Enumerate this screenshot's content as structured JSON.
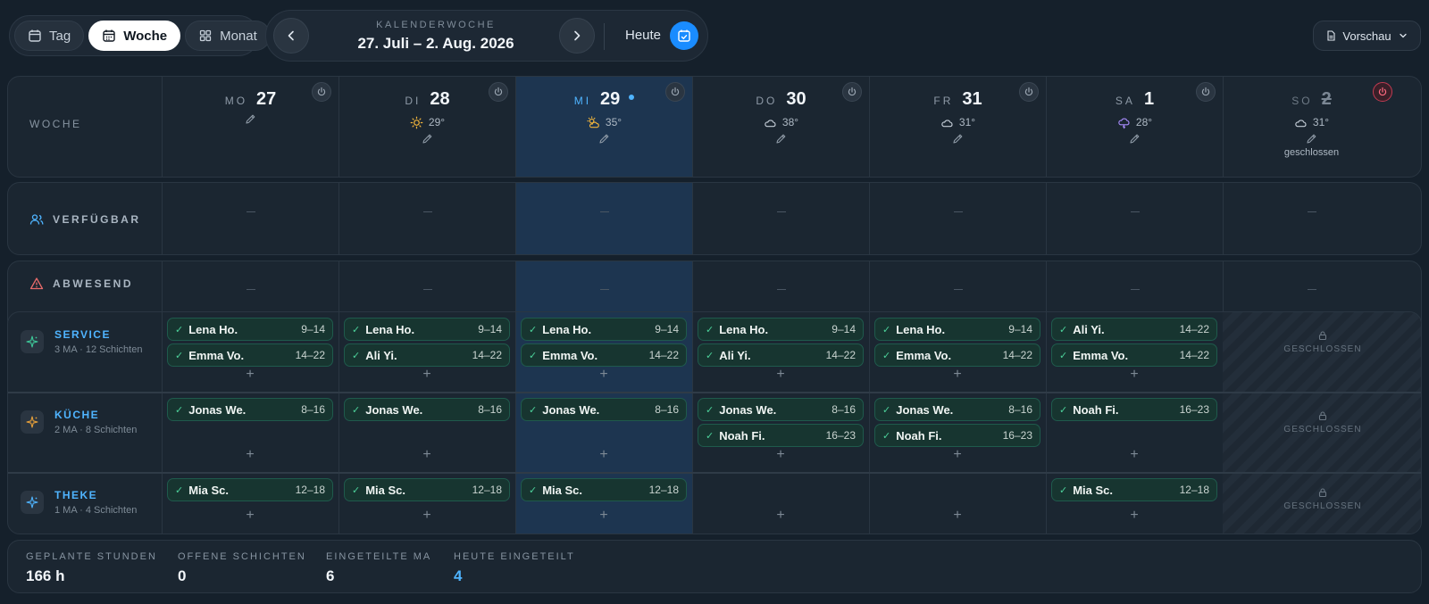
{
  "views": [
    {
      "label": "Tag",
      "icon": "calendar-icon",
      "active": false
    },
    {
      "label": "Woche",
      "icon": "calendar-week-icon",
      "active": true
    },
    {
      "label": "Monat",
      "icon": "grid-icon",
      "active": false
    }
  ],
  "week_nav": {
    "label": "KALENDERWOCHE",
    "range": "27. Juli – 2. Aug. 2026",
    "today_label": "Heute"
  },
  "preview_label": "Vorschau",
  "week_label": "WOCHE",
  "days": [
    {
      "dow": "MO",
      "num": "27",
      "weather": "",
      "weather_icon": "",
      "today": false,
      "closed": false
    },
    {
      "dow": "DI",
      "num": "28",
      "weather": "29°",
      "weather_icon": "sun-icon",
      "today": false,
      "closed": false
    },
    {
      "dow": "MI",
      "num": "29",
      "weather": "35°",
      "weather_icon": "sun-cloud-icon",
      "today": true,
      "closed": false
    },
    {
      "dow": "DO",
      "num": "30",
      "weather": "38°",
      "weather_icon": "cloud-icon",
      "today": false,
      "closed": false
    },
    {
      "dow": "FR",
      "num": "31",
      "weather": "31°",
      "weather_icon": "cloud-icon",
      "today": false,
      "closed": false
    },
    {
      "dow": "SA",
      "num": "1",
      "weather": "28°",
      "weather_icon": "storm-cloud-icon",
      "today": false,
      "closed": false
    },
    {
      "dow": "SO",
      "num": "2",
      "weather": "31°",
      "weather_icon": "cloud-icon",
      "today": false,
      "closed": true,
      "note": "geschlossen"
    }
  ],
  "rows": {
    "available": "VERFÜGBAR",
    "absent": "ABWESEND"
  },
  "closed_tag": "GESCHLOSSEN",
  "teams": [
    {
      "name": "SERVICE",
      "meta": "3 MA · 12 Schichten",
      "color": "#4fb4ff",
      "icon_color": "#3ec99a",
      "shifts": [
        [
          {
            "name": "Lena Ho.",
            "time": "9–14"
          },
          {
            "name": "Emma Vo.",
            "time": "14–22"
          }
        ],
        [
          {
            "name": "Lena Ho.",
            "time": "9–14"
          },
          {
            "name": "Ali Yi.",
            "time": "14–22"
          }
        ],
        [
          {
            "name": "Lena Ho.",
            "time": "9–14"
          },
          {
            "name": "Emma Vo.",
            "time": "14–22"
          }
        ],
        [
          {
            "name": "Lena Ho.",
            "time": "9–14"
          },
          {
            "name": "Ali Yi.",
            "time": "14–22"
          }
        ],
        [
          {
            "name": "Lena Ho.",
            "time": "9–14"
          },
          {
            "name": "Emma Vo.",
            "time": "14–22"
          }
        ],
        [
          {
            "name": "Ali Yi.",
            "time": "14–22"
          },
          {
            "name": "Emma Vo.",
            "time": "14–22"
          }
        ]
      ]
    },
    {
      "name": "KÜCHE",
      "meta": "2 MA · 8 Schichten",
      "color": "#4fb4ff",
      "icon_color": "#e8a13a",
      "shifts": [
        [
          {
            "name": "Jonas We.",
            "time": "8–16"
          }
        ],
        [
          {
            "name": "Jonas We.",
            "time": "8–16"
          }
        ],
        [
          {
            "name": "Jonas We.",
            "time": "8–16"
          }
        ],
        [
          {
            "name": "Jonas We.",
            "time": "8–16"
          },
          {
            "name": "Noah Fi.",
            "time": "16–23"
          }
        ],
        [
          {
            "name": "Jonas We.",
            "time": "8–16"
          },
          {
            "name": "Noah Fi.",
            "time": "16–23"
          }
        ],
        [
          {
            "name": "Noah Fi.",
            "time": "16–23"
          }
        ]
      ]
    },
    {
      "name": "THEKE",
      "meta": "1 MA · 4 Schichten",
      "color": "#4fb4ff",
      "icon_color": "#4fb4ff",
      "shifts": [
        [
          {
            "name": "Mia Sc.",
            "time": "12–18"
          }
        ],
        [
          {
            "name": "Mia Sc.",
            "time": "12–18"
          }
        ],
        [
          {
            "name": "Mia Sc.",
            "time": "12–18"
          }
        ],
        [],
        [],
        [
          {
            "name": "Mia Sc.",
            "time": "12–18"
          }
        ]
      ]
    }
  ],
  "summary": [
    {
      "label": "GEPLANTE STUNDEN",
      "value": "166 h",
      "highlight": false
    },
    {
      "label": "OFFENE SCHICHTEN",
      "value": "0",
      "highlight": false
    },
    {
      "label": "EINGETEILTE MA",
      "value": "6",
      "highlight": false
    },
    {
      "label": "HEUTE EINGETEILT",
      "value": "4",
      "highlight": true
    }
  ],
  "colors": {
    "accent": "#1a8cff",
    "today_bg": "#1d3550",
    "chip_bg": "#173530"
  }
}
